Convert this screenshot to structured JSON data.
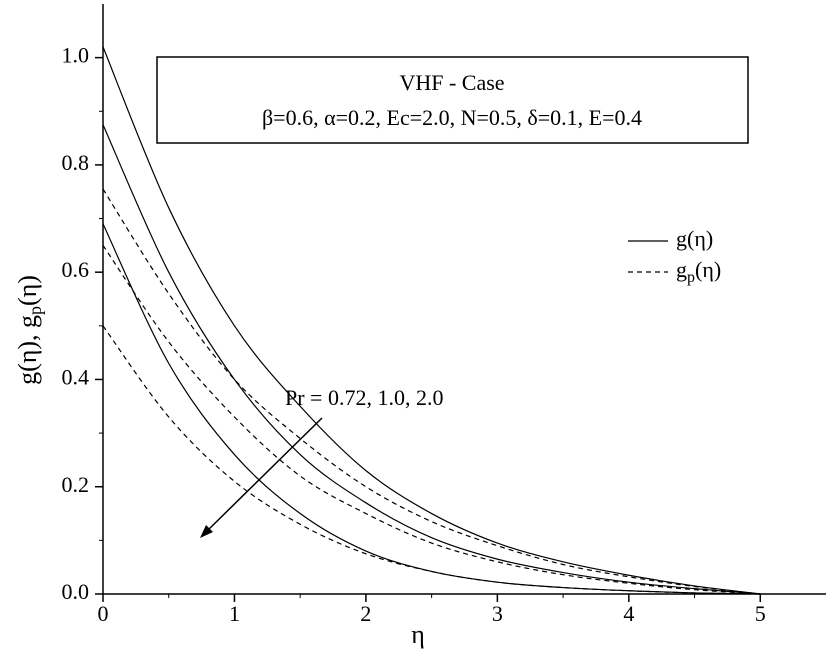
{
  "chart_data": {
    "type": "line",
    "box_title": "VHF - Case",
    "box_subtitle": "β=0.6, α=0.2, Ec=2.0, N=0.5, δ=0.1, E=0.4",
    "x_label": "η",
    "y_label": {
      "text": "g(η), g",
      "sub": "p",
      "tail": "(η)"
    },
    "annotation": "Pr = 0.72, 1.0, 2.0",
    "legend": [
      {
        "text": "g(η)",
        "style": "solid"
      },
      {
        "text": "g",
        "sub": "p",
        "tail": "(η)",
        "style": "dashed"
      }
    ],
    "x": [
      0,
      0.5,
      1,
      1.5,
      2,
      2.5,
      3,
      3.5,
      4,
      4.5,
      5
    ],
    "series": [
      {
        "style": "solid",
        "color": "#000000",
        "values": [
          1.02,
          0.72,
          0.5,
          0.35,
          0.23,
          0.15,
          0.095,
          0.06,
          0.035,
          0.015,
          0.0
        ]
      },
      {
        "style": "solid",
        "color": "#000000",
        "values": [
          0.875,
          0.6,
          0.4,
          0.26,
          0.17,
          0.105,
          0.065,
          0.04,
          0.022,
          0.01,
          0.0
        ]
      },
      {
        "style": "solid",
        "color": "#000000",
        "values": [
          0.69,
          0.43,
          0.26,
          0.15,
          0.08,
          0.042,
          0.022,
          0.012,
          0.006,
          0.002,
          0.0
        ]
      },
      {
        "style": "dashed",
        "color": "#000000",
        "values": [
          0.755,
          0.56,
          0.4,
          0.29,
          0.2,
          0.135,
          0.09,
          0.055,
          0.032,
          0.014,
          0.0
        ]
      },
      {
        "style": "dashed",
        "color": "#000000",
        "values": [
          0.65,
          0.47,
          0.33,
          0.22,
          0.15,
          0.095,
          0.06,
          0.036,
          0.02,
          0.008,
          0.0
        ]
      },
      {
        "style": "dashed",
        "color": "#000000",
        "values": [
          0.5,
          0.33,
          0.21,
          0.13,
          0.075,
          0.042,
          0.022,
          0.012,
          0.006,
          0.002,
          0.0
        ]
      }
    ],
    "xlim": [
      0,
      5.5
    ],
    "xticks": [
      0,
      1,
      2,
      3,
      4,
      5
    ],
    "ylim": [
      0,
      1.1
    ],
    "yticks": [
      {
        "value": 0,
        "label": "0.0"
      },
      0.2,
      0.4,
      0.6,
      0.8,
      {
        "value": 1,
        "label": "1.0"
      }
    ]
  }
}
